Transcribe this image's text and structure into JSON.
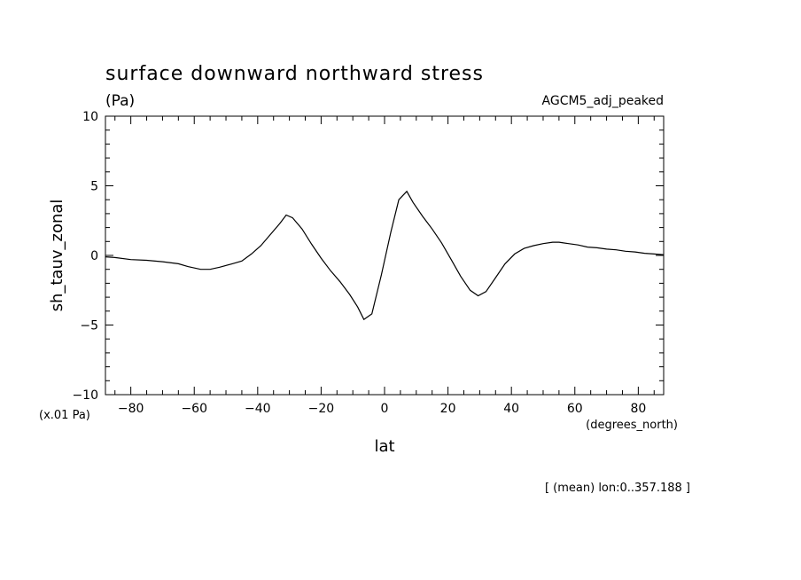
{
  "chart_data": {
    "type": "line",
    "title": "surface downward northward stress",
    "units": "(Pa)",
    "run_label": "AGCM5_adj_peaked",
    "ylabel": "sh_tauv_zonal",
    "y_scale_note": "(x.01 Pa)",
    "xlabel": "lat",
    "x_units": "(degrees_north)",
    "footer": "[ (mean) lon:0..357.188 ]",
    "xlim": [
      -88,
      88
    ],
    "ylim": [
      -10,
      10
    ],
    "x_ticks": [
      -80,
      -60,
      -40,
      -20,
      0,
      20,
      40,
      60,
      80
    ],
    "x_tick_labels": [
      "−80",
      "−60",
      "−40",
      "−20",
      "0",
      "20",
      "40",
      "60",
      "80"
    ],
    "y_ticks": [
      -10,
      -5,
      0,
      5,
      10
    ],
    "y_tick_labels": [
      "−10",
      "−5",
      "0",
      "5",
      "10"
    ],
    "series": [
      {
        "x": [
          -88,
          -85,
          -80,
          -75,
          -70,
          -65,
          -62,
          -58,
          -55,
          -52,
          -48,
          -45,
          -42,
          -39,
          -36,
          -33,
          -31,
          -29,
          -26,
          -23,
          -20,
          -17,
          -14,
          -11,
          -8.5,
          -6.5,
          -4,
          -1,
          2,
          4.5,
          7,
          9,
          12,
          15,
          18,
          21,
          24,
          27,
          29.5,
          32,
          35,
          38,
          41,
          44,
          47,
          50,
          53,
          55,
          58,
          61,
          64,
          67,
          70,
          73,
          76,
          79,
          82,
          85,
          88
        ],
        "y": [
          -0.1,
          -0.15,
          -0.3,
          -0.35,
          -0.45,
          -0.6,
          -0.8,
          -1.0,
          -1.0,
          -0.85,
          -0.6,
          -0.4,
          0.1,
          0.7,
          1.5,
          2.3,
          2.9,
          2.7,
          1.9,
          0.8,
          -0.2,
          -1.1,
          -1.9,
          -2.8,
          -3.7,
          -4.6,
          -4.2,
          -1.4,
          1.7,
          4.0,
          4.6,
          3.8,
          2.8,
          1.9,
          0.9,
          -0.3,
          -1.5,
          -2.5,
          -2.9,
          -2.6,
          -1.6,
          -0.6,
          0.1,
          0.5,
          0.7,
          0.85,
          0.95,
          0.95,
          0.85,
          0.75,
          0.6,
          0.55,
          0.45,
          0.4,
          0.3,
          0.25,
          0.15,
          0.1,
          0.05
        ]
      }
    ],
    "grid": false,
    "legend": "none"
  }
}
